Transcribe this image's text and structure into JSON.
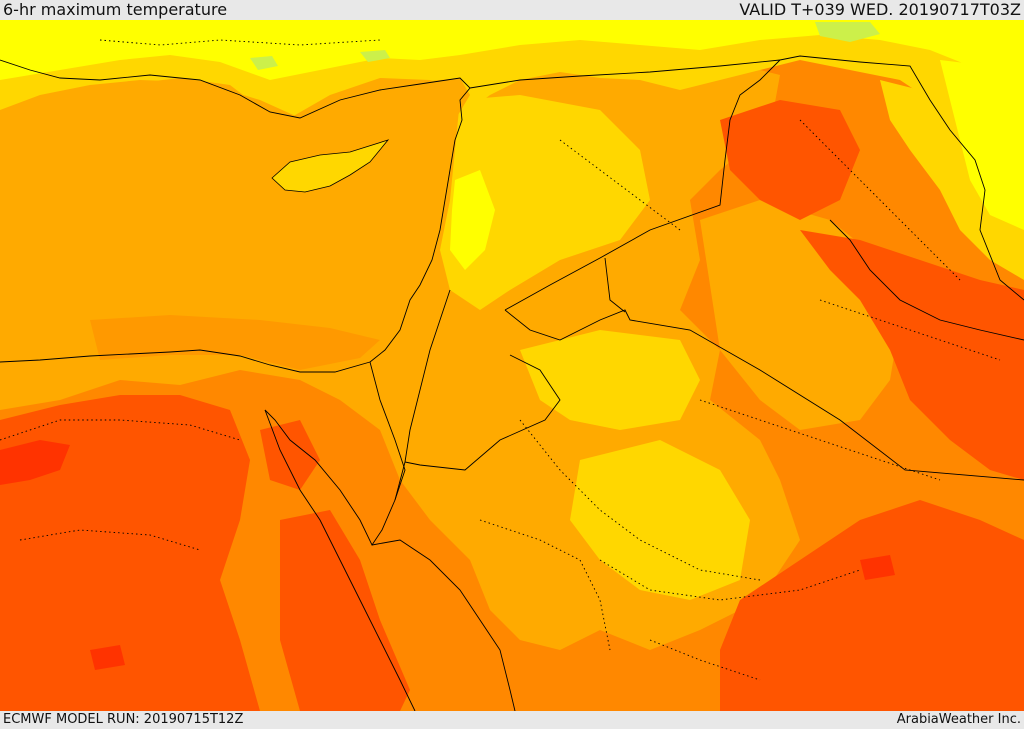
{
  "header": {
    "title": "6-hr maximum temperature",
    "valid": "VALID T+039 WED. 20190717T03Z"
  },
  "footer": {
    "model_run": "ECMWF MODEL RUN: 20190715T12Z",
    "credit": "ArabiaWeather Inc."
  },
  "map": {
    "variable": "6-hr maximum temperature",
    "palette": {
      "cool_green": "#ccf04a",
      "yellow": "#ffff00",
      "gold": "#ffd700",
      "amber": "#ffaa00",
      "orange": "#ff8800",
      "deep_orange": "#ff5500",
      "red_orange": "#ff3300"
    },
    "border_color": "#000000"
  }
}
